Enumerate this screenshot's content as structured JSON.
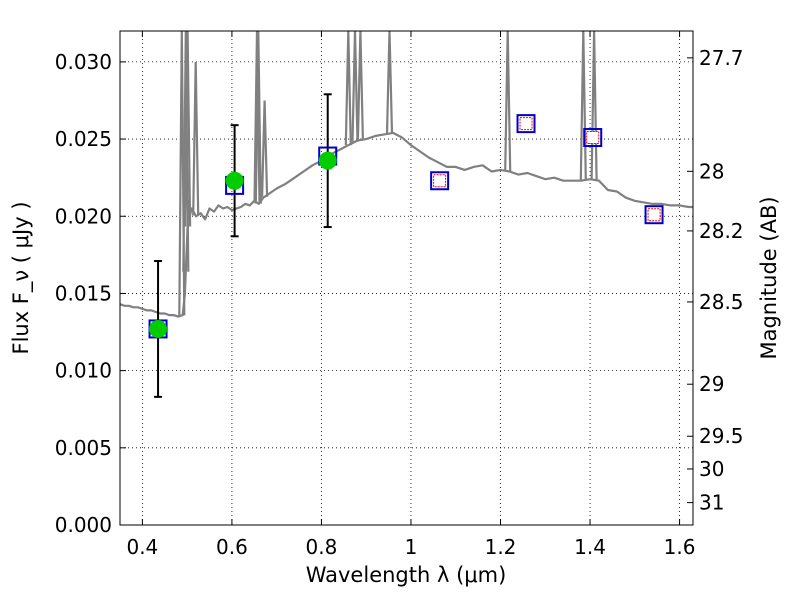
{
  "chart_data": {
    "type": "line",
    "xlabel": "Wavelength  λ (μm)",
    "ylabel": "Flux  F_ν  ( μJy )",
    "ylabel_right": "Magnitude (AB)",
    "xlim": [
      0.35,
      1.63
    ],
    "ylim": [
      0.0,
      0.032
    ],
    "grid": true,
    "x_ticks": [
      {
        "value": 0.4,
        "label": "0.4"
      },
      {
        "value": 0.6,
        "label": "0.6"
      },
      {
        "value": 0.8,
        "label": "0.8"
      },
      {
        "value": 1.0,
        "label": "1"
      },
      {
        "value": 1.2,
        "label": "1.2"
      },
      {
        "value": 1.4,
        "label": "1.4"
      },
      {
        "value": 1.6,
        "label": "1.6"
      }
    ],
    "y_ticks": [
      {
        "value": 0.0,
        "label": "0.000"
      },
      {
        "value": 0.005,
        "label": "0.005"
      },
      {
        "value": 0.01,
        "label": "0.010"
      },
      {
        "value": 0.015,
        "label": "0.015"
      },
      {
        "value": 0.02,
        "label": "0.020"
      },
      {
        "value": 0.025,
        "label": "0.025"
      },
      {
        "value": 0.03,
        "label": "0.030"
      }
    ],
    "y_right_ticks": [
      {
        "flux": 0.03026,
        "label": "27.7"
      },
      {
        "flux": 0.02291,
        "label": "28"
      },
      {
        "flux": 0.01905,
        "label": "28.2"
      },
      {
        "flux": 0.01445,
        "label": "28.5"
      },
      {
        "flux": 0.00912,
        "label": "29"
      },
      {
        "flux": 0.00575,
        "label": "29.5"
      },
      {
        "flux": 0.00363,
        "label": "30"
      },
      {
        "flux": 0.00145,
        "label": "31"
      }
    ],
    "series": [
      {
        "kind": "spectrum",
        "color": "#808080",
        "x": [
          0.35,
          0.36,
          0.37,
          0.38,
          0.39,
          0.4,
          0.41,
          0.42,
          0.43,
          0.44,
          0.45,
          0.46,
          0.47,
          0.48,
          0.49,
          0.495,
          0.5,
          0.503,
          0.506,
          0.51,
          0.52,
          0.53,
          0.54,
          0.55,
          0.56,
          0.57,
          0.58,
          0.59,
          0.6,
          0.61,
          0.62,
          0.63,
          0.64,
          0.65,
          0.66,
          0.67,
          0.68,
          0.7,
          0.72,
          0.74,
          0.76,
          0.78,
          0.8,
          0.82,
          0.84,
          0.86,
          0.88,
          0.9,
          0.92,
          0.94,
          0.96,
          0.98,
          1.0,
          1.02,
          1.04,
          1.06,
          1.08,
          1.1,
          1.12,
          1.14,
          1.16,
          1.18,
          1.2,
          1.22,
          1.24,
          1.26,
          1.28,
          1.3,
          1.32,
          1.34,
          1.36,
          1.38,
          1.4,
          1.42,
          1.44,
          1.46,
          1.48,
          1.5,
          1.52,
          1.54,
          1.56,
          1.58,
          1.6,
          1.62,
          1.63
        ],
        "y": [
          0.0143,
          0.0142,
          0.0142,
          0.0141,
          0.0141,
          0.014,
          0.0139,
          0.0139,
          0.0138,
          0.0137,
          0.0137,
          0.0136,
          0.0136,
          0.0135,
          0.0136,
          0.015,
          0.0185,
          0.021,
          0.02,
          0.0205,
          0.02,
          0.0202,
          0.0198,
          0.0205,
          0.0203,
          0.0207,
          0.0205,
          0.0206,
          0.0204,
          0.0205,
          0.0206,
          0.0208,
          0.0207,
          0.021,
          0.0208,
          0.0212,
          0.0214,
          0.0218,
          0.0221,
          0.0225,
          0.0229,
          0.0233,
          0.0236,
          0.024,
          0.0243,
          0.0246,
          0.0249,
          0.025,
          0.0252,
          0.0253,
          0.0254,
          0.0251,
          0.0246,
          0.0242,
          0.0238,
          0.0235,
          0.0232,
          0.0232,
          0.023,
          0.0232,
          0.0233,
          0.0229,
          0.023,
          0.0229,
          0.0227,
          0.0228,
          0.0226,
          0.0224,
          0.0225,
          0.0223,
          0.0223,
          0.0223,
          0.0224,
          0.0223,
          0.0217,
          0.0216,
          0.0212,
          0.021,
          0.0209,
          0.0208,
          0.0208,
          0.0207,
          0.0207,
          0.0206,
          0.0206
        ]
      },
      {
        "kind": "emission_lines",
        "color": "#808080",
        "lines": [
          {
            "x": 0.488,
            "peak": 0.032
          },
          {
            "x": 0.497,
            "peak": 0.032
          },
          {
            "x": 0.501,
            "peak": 0.032
          },
          {
            "x": 0.519,
            "peak": 0.03
          },
          {
            "x": 0.656,
            "peak": 0.032
          },
          {
            "x": 0.659,
            "peak": 0.032
          },
          {
            "x": 0.673,
            "peak": 0.0275
          },
          {
            "x": 0.86,
            "peak": 0.032
          },
          {
            "x": 0.875,
            "peak": 0.032
          },
          {
            "x": 0.887,
            "peak": 0.032
          },
          {
            "x": 0.952,
            "peak": 0.032
          },
          {
            "x": 1.216,
            "peak": 0.032
          },
          {
            "x": 1.385,
            "peak": 0.032
          },
          {
            "x": 1.409,
            "peak": 0.032
          }
        ]
      }
    ],
    "model_points": {
      "color": "#0000cc",
      "x": [
        0.435,
        0.606,
        0.814,
        1.064,
        1.257,
        1.406,
        1.543
      ],
      "y": [
        0.0127,
        0.022,
        0.0239,
        0.0223,
        0.026,
        0.0251,
        0.0201
      ]
    },
    "upper_limits": {
      "color": "#ff0000",
      "x": [
        1.064,
        1.257,
        1.406,
        1.543
      ],
      "y": [
        0.0223,
        0.026,
        0.0251,
        0.0201
      ]
    },
    "observed": {
      "color": "#00cc00",
      "x": [
        0.435,
        0.606,
        0.814
      ],
      "y": [
        0.0127,
        0.0223,
        0.0236
      ],
      "err": [
        0.0044,
        0.0036,
        0.0043
      ]
    }
  }
}
